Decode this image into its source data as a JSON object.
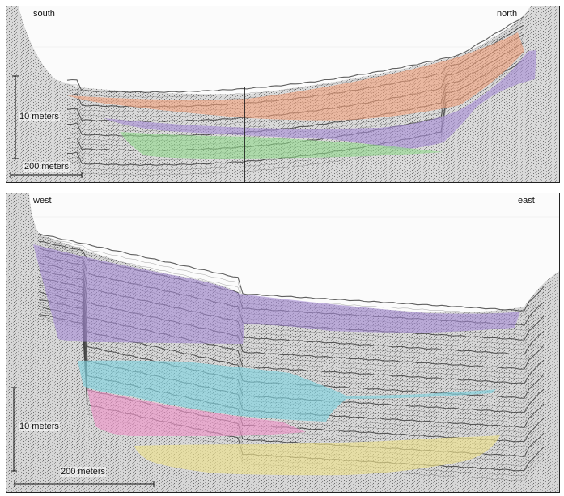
{
  "top_panel": {
    "left_label": "south",
    "right_label": "north",
    "vertical_scale_label": "10 meters",
    "horizontal_scale_label": "200 meters",
    "units": [
      {
        "name": "orange-unit",
        "color": "#f4a07a"
      },
      {
        "name": "purple-unit",
        "color": "#a58ad6"
      },
      {
        "name": "green-unit",
        "color": "#8fd98a"
      }
    ]
  },
  "bottom_panel": {
    "left_label": "west",
    "right_label": "east",
    "vertical_scale_label": "10 meters",
    "horizontal_scale_label": "200 meters",
    "units": [
      {
        "name": "purple-unit",
        "color": "#a58ad6"
      },
      {
        "name": "cyan-unit",
        "color": "#7fd3df"
      },
      {
        "name": "pink-unit",
        "color": "#ee94c8"
      },
      {
        "name": "yellow-unit",
        "color": "#ece08a"
      }
    ]
  },
  "colors": {
    "reflector": "#3a3a3a",
    "speckle": "#8a8a8a"
  }
}
